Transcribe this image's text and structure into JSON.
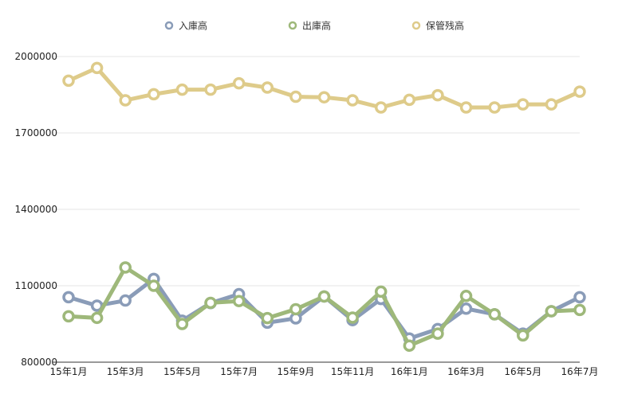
{
  "chart_data": {
    "type": "line",
    "categories": [
      "15年1月",
      "15年2月",
      "15年3月",
      "15年4月",
      "15年5月",
      "15年6月",
      "15年7月",
      "15年8月",
      "15年9月",
      "15年10月",
      "15年11月",
      "15年12月",
      "16年1月",
      "16年2月",
      "16年3月",
      "16年4月",
      "16年5月",
      "16年6月",
      "16年7月"
    ],
    "x_tick_labels": [
      "15年1月",
      "15年3月",
      "15年5月",
      "15年7月",
      "15年9月",
      "15年11月",
      "16年1月",
      "16年3月",
      "16年5月",
      "16年7月"
    ],
    "y_tick_labels": [
      "800000",
      "1100000",
      "1400000",
      "1700000",
      "2000000"
    ],
    "ylim": [
      800000,
      2000000
    ],
    "y_ticks": [
      800000,
      1100000,
      1400000,
      1700000,
      2000000
    ],
    "grid": true,
    "legend_position": "top-center",
    "series": [
      {
        "name": "入庫高",
        "color": "#8A9CB8",
        "values": [
          1055000,
          1022000,
          1042000,
          1127000,
          963000,
          1032000,
          1067000,
          955000,
          972000,
          1058000,
          965000,
          1048000,
          893000,
          930000,
          1010000,
          988000,
          912000,
          1000000,
          1055000
        ]
      },
      {
        "name": "出庫高",
        "color": "#9EB87A",
        "values": [
          980000,
          974000,
          1172000,
          1100000,
          950000,
          1033000,
          1040000,
          973000,
          1008000,
          1058000,
          975000,
          1077000,
          865000,
          912000,
          1060000,
          988000,
          905000,
          1000000,
          1005000
        ]
      },
      {
        "name": "保管残高",
        "color": "#DECB8A",
        "values": [
          1905000,
          1955000,
          1828000,
          1852000,
          1870000,
          1870000,
          1895000,
          1878000,
          1842000,
          1840000,
          1828000,
          1800000,
          1830000,
          1848000,
          1800000,
          1800000,
          1812000,
          1812000,
          1862000
        ]
      }
    ]
  }
}
